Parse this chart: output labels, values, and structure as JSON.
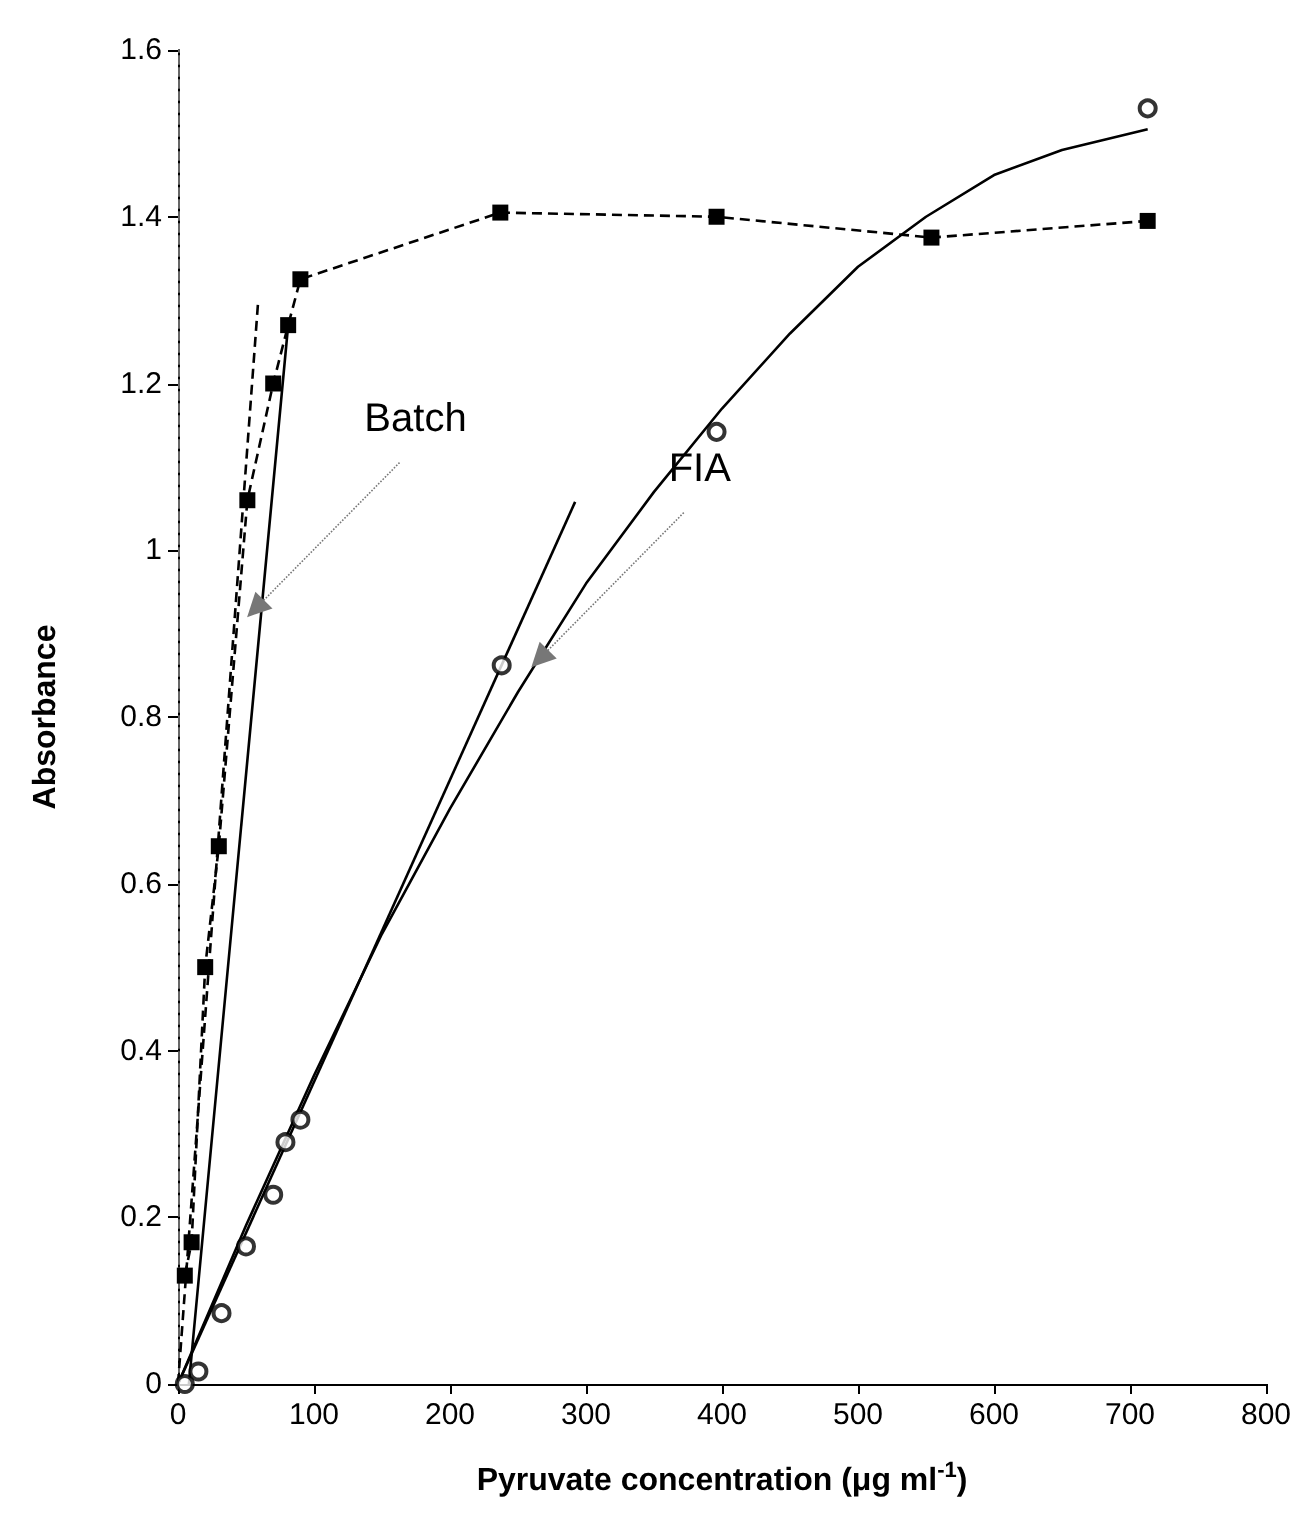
{
  "chart_data": {
    "type": "line",
    "xlabel": "Pyruvate concentration (μg ml$^{-1}$)",
    "ylabel": "Absorbance",
    "xlim": [
      0,
      800
    ],
    "xticks": [
      0,
      100,
      200,
      300,
      400,
      500,
      600,
      700,
      800
    ],
    "ylim": [
      0,
      1.6
    ],
    "yticks": [
      0,
      0.2,
      0.4,
      0.6,
      0.8,
      1,
      1.2,
      1.4,
      1.6
    ],
    "grid": false,
    "series": [
      {
        "color": "#000000",
        "marker": "square",
        "line_style": "dashed",
        "x": [
          5,
          10,
          20,
          30,
          51,
          70,
          81,
          90,
          237,
          396,
          554,
          713
        ],
        "values": [
          0.13,
          0.17,
          0.5,
          0.645,
          1.06,
          1.2,
          1.27,
          1.325,
          1.405,
          1.4,
          1.375,
          1.395
        ]
      },
      {
        "color": "#000000",
        "marker": "none",
        "line_style": "solid",
        "x": [
          8,
          81
        ],
        "values": [
          0,
          1.27
        ]
      },
      {
        "color": "#000000",
        "marker": "none",
        "line_style": "dashed",
        "x": [
          0,
          59
        ],
        "values": [
          0,
          1.3
        ]
      },
      {
        "type": "scatter",
        "color": "#000000",
        "marker": "circle",
        "x": [
          5,
          15,
          32,
          50,
          70,
          79,
          90,
          238,
          396,
          713
        ],
        "values": [
          0,
          0.015,
          0.085,
          0.165,
          0.227,
          0.29,
          0.317,
          0.862,
          1.142,
          1.53
        ]
      },
      {
        "color": "#000000",
        "marker": "none",
        "line_style": "solid",
        "x": [
          0,
          50,
          100,
          150,
          200,
          250,
          300,
          350,
          400,
          450,
          500,
          550,
          600,
          650,
          713
        ],
        "values": [
          0,
          0.19,
          0.37,
          0.54,
          0.69,
          0.83,
          0.96,
          1.07,
          1.17,
          1.26,
          1.34,
          1.4,
          1.45,
          1.48,
          1.505
        ]
      },
      {
        "color": "#000000",
        "marker": "none",
        "line_style": "solid",
        "x": [
          0,
          292
        ],
        "values": [
          0,
          1.058
        ]
      }
    ],
    "annotations": [
      {
        "text": "Batch",
        "x": 57,
        "y": 0.93
      },
      {
        "text": "FIA",
        "x": 266,
        "y": 0.87
      }
    ]
  }
}
